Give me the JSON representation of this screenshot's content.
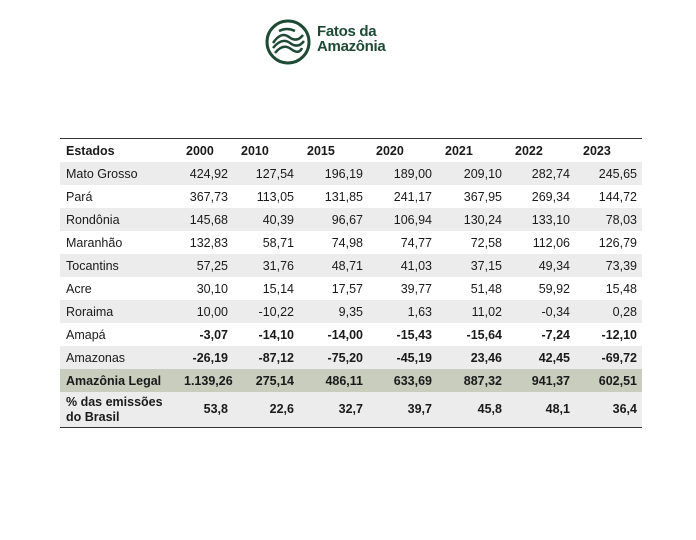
{
  "header": {
    "logo_line1": "Fatos da",
    "logo_line2": "Amazônia"
  },
  "table": {
    "columns": [
      "Estados",
      "2000",
      "2010",
      "2015",
      "2020",
      "2021",
      "2022",
      "2023"
    ],
    "rows": [
      [
        "Mato Grosso",
        "424,92",
        "127,54",
        "196,19",
        "189,00",
        "209,10",
        "282,74",
        "245,65"
      ],
      [
        "Pará",
        "367,73",
        "113,05",
        "131,85",
        "241,17",
        "367,95",
        "269,34",
        "144,72"
      ],
      [
        "Rondônia",
        "145,68",
        "40,39",
        "96,67",
        "106,94",
        "130,24",
        "133,10",
        "78,03"
      ],
      [
        "Maranhão",
        "132,83",
        "58,71",
        "74,98",
        "74,77",
        "72,58",
        "112,06",
        "126,79"
      ],
      [
        "Tocantins",
        "57,25",
        "31,76",
        "48,71",
        "41,03",
        "37,15",
        "49,34",
        "73,39"
      ],
      [
        "Acre",
        "30,10",
        "15,14",
        "17,57",
        "39,77",
        "51,48",
        "59,92",
        "15,48"
      ],
      [
        "Roraima",
        "10,00",
        "-10,22",
        "9,35",
        "1,63",
        "11,02",
        "-0,34",
        "0,28"
      ],
      [
        "Amapá",
        "-3,07",
        "-14,10",
        "-14,00",
        "-15,43",
        "-15,64",
        "-7,24",
        "-12,10"
      ],
      [
        "Amazonas",
        "-26,19",
        "-87,12",
        "-75,20",
        "-45,19",
        "23,46",
        "42,45",
        "-69,72"
      ],
      [
        "Amazônia Legal",
        "1.139,26",
        "275,14",
        "486,11",
        "633,69",
        "887,32",
        "941,37",
        "602,51"
      ],
      [
        "% das emissões do Brasil",
        "53,8",
        "22,6",
        "32,7",
        "39,7",
        "45,8",
        "48,1",
        "36,4"
      ]
    ]
  }
}
